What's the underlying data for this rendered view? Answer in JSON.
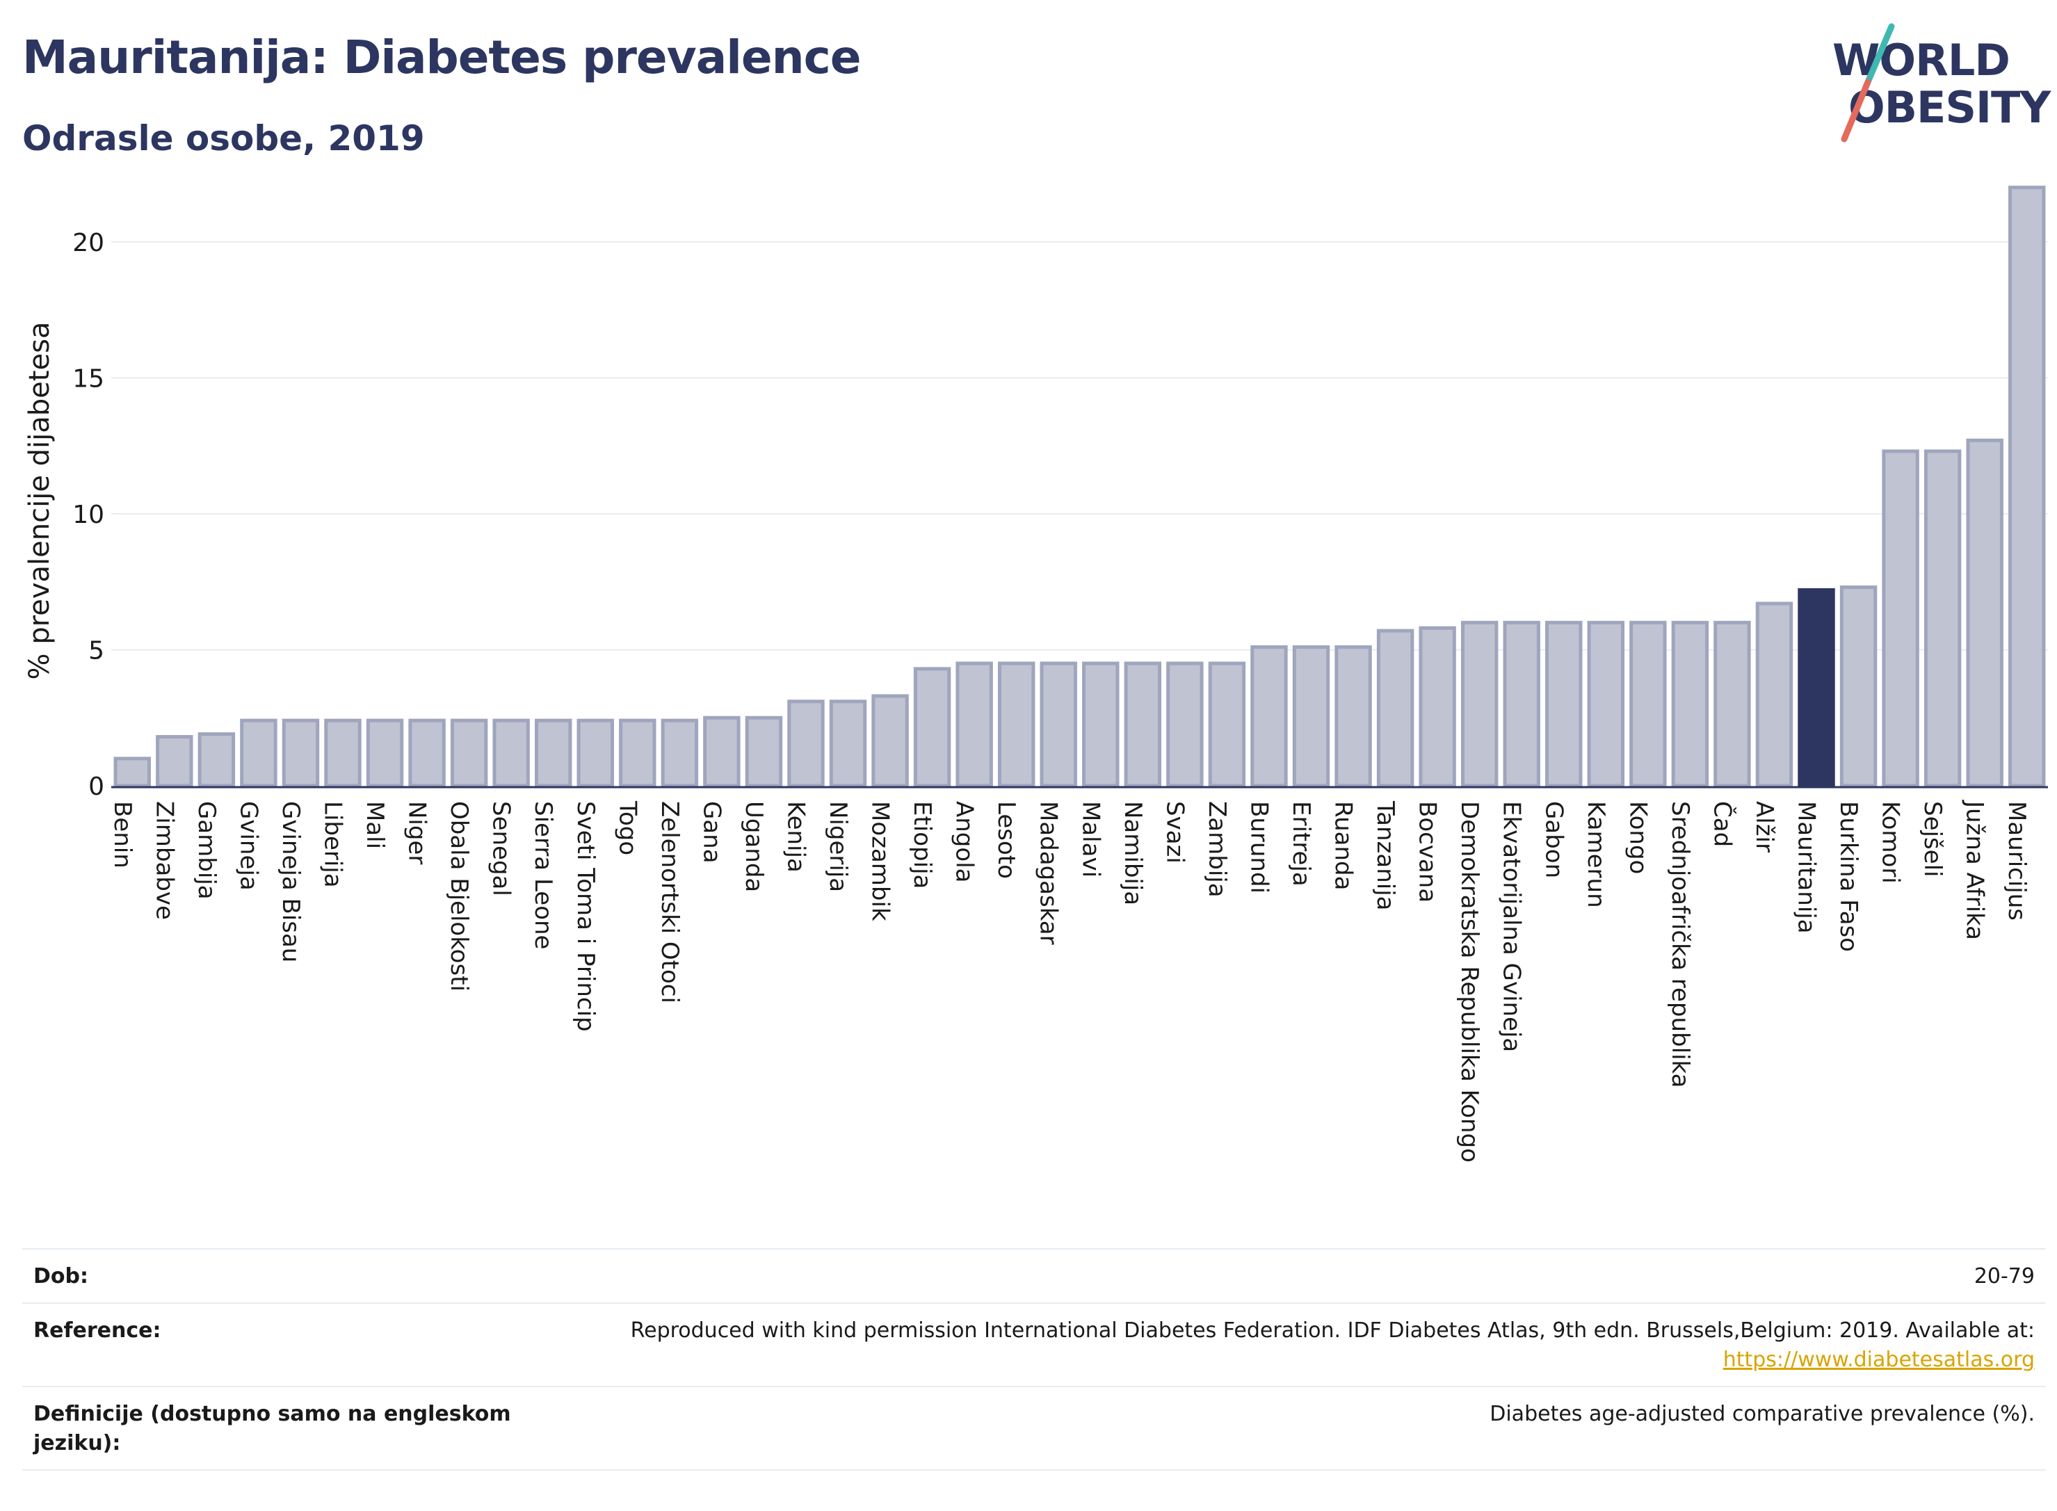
{
  "header": {
    "title": "Mauritanija: Diabetes prevalence",
    "subtitle": "Odrasle osobe, 2019"
  },
  "logo": {
    "line1": "WORLD",
    "line2": "OBESITY",
    "colors": [
      "#2c3660",
      "#3fb8b1",
      "#e36a5c"
    ]
  },
  "chart_data": {
    "type": "bar",
    "ylabel": "% prevalencije dijabetesa",
    "ylim": [
      0,
      22.5
    ],
    "yticks": [
      0,
      5,
      10,
      15,
      20
    ],
    "grid": true,
    "highlight": "Mauritanija",
    "colors": {
      "bar": "#bfc3d2",
      "bar_border": "#9fa5bd",
      "highlight": "#2c3660",
      "grid": "#e8ebee",
      "axis": "#2c3660"
    },
    "categories": [
      "Benin",
      "Zimbabve",
      "Gambija",
      "Gvineja",
      "Gvineja Bisau",
      "Liberija",
      "Mali",
      "Niger",
      "Obala Bjelokosti",
      "Senegal",
      "Sierra Leone",
      "Sveti Toma i Princip",
      "Togo",
      "Zelenortski Otoci",
      "Gana",
      "Uganda",
      "Kenija",
      "Nigerija",
      "Mozambik",
      "Etiopija",
      "Angola",
      "Lesoto",
      "Madagaskar",
      "Malavi",
      "Namibija",
      "Svazi",
      "Zambija",
      "Burundi",
      "Eritreja",
      "Ruanda",
      "Tanzanija",
      "Bocvana",
      "Demokratska Republika Kongo",
      "Ekvatorijalna Gvineja",
      "Gabon",
      "Kamerun",
      "Kongo",
      "Srednjoafrička republika",
      "Čad",
      "Alžir",
      "Mauritanija",
      "Burkina Faso",
      "Komori",
      "Sejšeli",
      "Južna Afrika",
      "Mauricijus"
    ],
    "values": [
      1.0,
      1.8,
      1.9,
      2.4,
      2.4,
      2.4,
      2.4,
      2.4,
      2.4,
      2.4,
      2.4,
      2.4,
      2.4,
      2.4,
      2.5,
      2.5,
      3.1,
      3.1,
      3.3,
      4.3,
      4.5,
      4.5,
      4.5,
      4.5,
      4.5,
      4.5,
      4.5,
      5.1,
      5.1,
      5.1,
      5.7,
      5.8,
      6.0,
      6.0,
      6.0,
      6.0,
      6.0,
      6.0,
      6.0,
      6.7,
      7.2,
      7.3,
      12.3,
      12.3,
      12.7,
      22.0
    ]
  },
  "footer": {
    "rows": [
      {
        "label": "Dob:",
        "value": "20-79"
      },
      {
        "label": "Reference:",
        "value": "Reproduced with kind permission International Diabetes Federation. IDF Diabetes Atlas, 9th edn. Brussels,Belgium: 2019. Available at:",
        "link": "https://www.diabetesatlas.org"
      },
      {
        "label": "Definicije (dostupno samo na engleskom jeziku):",
        "value": "Diabetes age-adjusted comparative prevalence (%)."
      }
    ]
  }
}
